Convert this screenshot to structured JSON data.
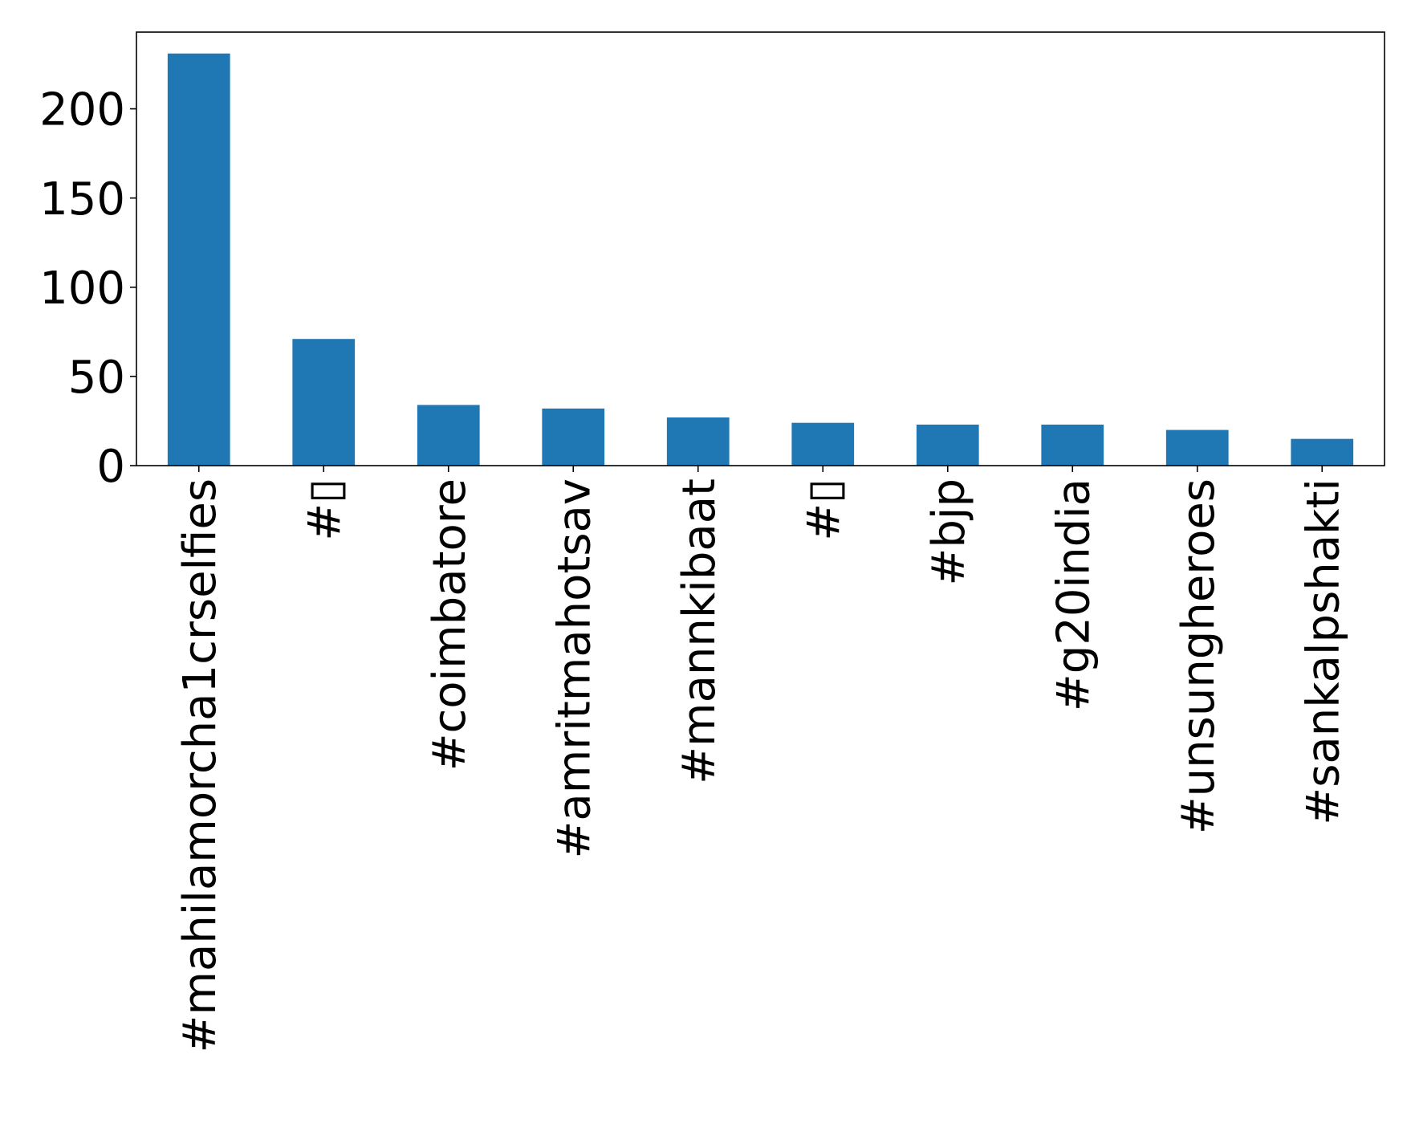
{
  "chart_data": {
    "type": "bar",
    "title": "",
    "xlabel": "",
    "ylabel": "",
    "categories": [
      "#mahilamorcha1crselfies",
      "#▯",
      "#coimbatore",
      "#amritmahotsav",
      "#mannkibaat",
      "#▯",
      "#bjp",
      "#g20india",
      "#unsungheroes",
      "#sankalpshakti"
    ],
    "values": [
      231,
      71,
      34,
      32,
      27,
      24,
      23,
      23,
      20,
      15
    ],
    "ylim": [
      0,
      243
    ],
    "yticks": [
      0,
      50,
      100,
      150,
      200
    ],
    "ytick_labels": [
      "0",
      "50",
      "100",
      "150",
      "200"
    ],
    "bar_color": "#1f77b4",
    "grid": false,
    "legend": "none"
  }
}
